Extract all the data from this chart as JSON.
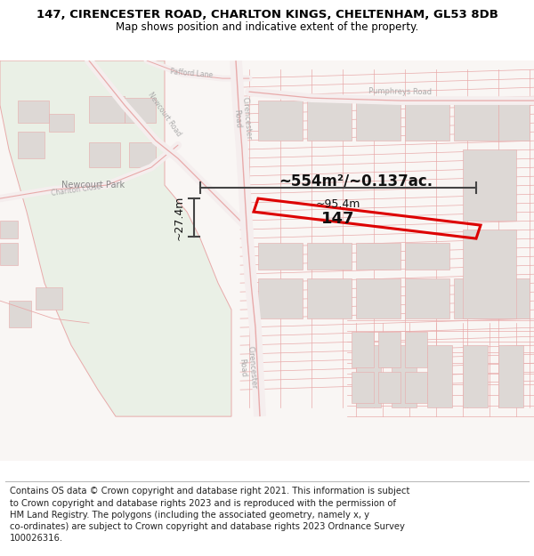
{
  "title_line1": "147, CIRENCESTER ROAD, CHARLTON KINGS, CHELTENHAM, GL53 8DB",
  "title_line2": "Map shows position and indicative extent of the property.",
  "footer": "Contains OS data © Crown copyright and database right 2021. This information is subject\nto Crown copyright and database rights 2023 and is reproduced with the permission of\nHM Land Registry. The polygons (including the associated geometry, namely x, y\nco-ordinates) are subject to Crown copyright and database rights 2023 Ordnance Survey\n100026316.",
  "area_label": "~554m²/~0.137ac.",
  "dim_width": "~95.4m",
  "dim_height": "~27.4m",
  "property_label": "147",
  "bg_color": "#ffffff",
  "map_bg": "#f9f6f4",
  "road_color": "#e8aaaa",
  "road_fill": "#f5eeee",
  "highlight_color": "#dd0000",
  "park_color": "#eaf0e6",
  "park_edge": "#c8d8c0",
  "block_color": "#ddd8d5",
  "dim_color": "#444444",
  "road_label_color": "#aaaaaa",
  "title_fontsize": 9.5,
  "subtitle_fontsize": 8.5,
  "footer_fontsize": 7.2
}
